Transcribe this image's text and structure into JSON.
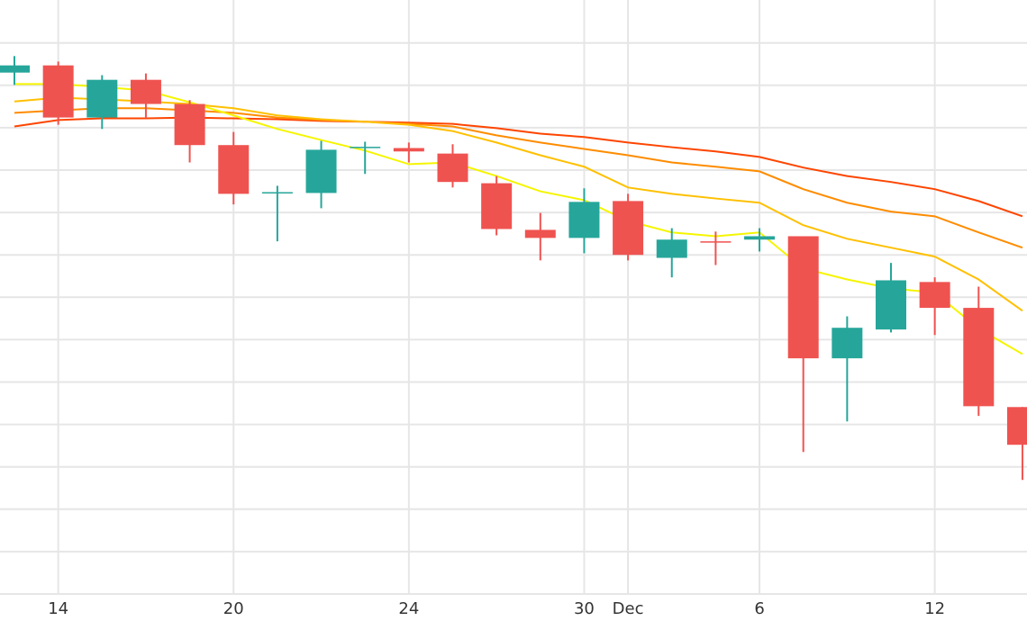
{
  "chart_data": {
    "type": "candlestick",
    "categories": [
      null,
      "14",
      null,
      null,
      null,
      "20",
      null,
      null,
      null,
      "24",
      null,
      null,
      null,
      "30",
      "Dec",
      null,
      null,
      "6",
      null,
      null,
      null,
      "12",
      null,
      null
    ],
    "open": [
      12.3,
      12.47,
      11.24,
      12.13,
      11.56,
      10.59,
      9.46,
      9.46,
      10.53,
      10.52,
      10.39,
      9.69,
      8.59,
      8.4,
      9.27,
      7.93,
      8.32,
      8.36,
      8.44,
      5.56,
      6.24,
      7.36,
      6.75,
      4.41
    ],
    "high": [
      12.69,
      12.56,
      12.24,
      12.28,
      11.65,
      10.9,
      9.63,
      10.69,
      10.67,
      10.65,
      10.61,
      9.86,
      8.99,
      9.57,
      9.44,
      8.63,
      8.55,
      8.63,
      8.44,
      6.55,
      7.81,
      7.47,
      7.25,
      4.41
    ],
    "low": [
      12.01,
      11.07,
      10.97,
      11.22,
      10.18,
      9.19,
      8.32,
      9.1,
      9.91,
      10.18,
      9.59,
      8.46,
      7.87,
      8.04,
      7.87,
      7.47,
      7.76,
      8.08,
      3.35,
      4.07,
      6.17,
      6.11,
      4.2,
      2.69
    ],
    "close": [
      12.47,
      11.24,
      12.13,
      11.56,
      10.59,
      9.44,
      9.48,
      10.48,
      10.55,
      10.44,
      9.72,
      8.61,
      8.4,
      9.25,
      8.0,
      8.36,
      8.3,
      8.44,
      5.56,
      6.28,
      7.4,
      6.75,
      4.43,
      3.52
    ],
    "up_color": "#26a69a",
    "down_color": "#ef5350",
    "series": [
      {
        "color": "#ff4500",
        "values": [
          11.03,
          11.18,
          11.22,
          11.22,
          11.24,
          11.22,
          11.2,
          11.16,
          11.14,
          11.12,
          11.09,
          10.99,
          10.86,
          10.78,
          10.65,
          10.54,
          10.44,
          10.31,
          10.06,
          9.86,
          9.72,
          9.55,
          9.27,
          8.91
        ]
      },
      {
        "color": "#ff8c00",
        "values": [
          11.35,
          11.41,
          11.46,
          11.46,
          11.41,
          11.35,
          11.24,
          11.18,
          11.14,
          11.09,
          11.03,
          10.82,
          10.65,
          10.5,
          10.35,
          10.18,
          10.08,
          9.97,
          9.55,
          9.23,
          9.02,
          8.91,
          8.53,
          8.17
        ]
      },
      {
        "color": "#ffc000",
        "values": [
          11.62,
          11.71,
          11.67,
          11.62,
          11.56,
          11.46,
          11.29,
          11.2,
          11.14,
          11.07,
          10.92,
          10.65,
          10.35,
          10.08,
          9.59,
          9.44,
          9.33,
          9.23,
          8.7,
          8.38,
          8.17,
          7.96,
          7.42,
          6.68
        ]
      },
      {
        "color": "#f5f500",
        "values": [
          12.03,
          12.03,
          11.96,
          11.88,
          11.6,
          11.29,
          10.97,
          10.71,
          10.46,
          10.14,
          10.18,
          9.86,
          9.5,
          9.29,
          8.8,
          8.53,
          8.44,
          8.53,
          7.68,
          7.42,
          7.21,
          7.11,
          6.26,
          5.66
        ]
      }
    ],
    "ylim": [
      0,
      14
    ],
    "yticks": [
      0,
      1,
      2,
      3,
      4,
      5,
      6,
      7,
      8,
      9,
      10,
      11,
      12,
      13
    ],
    "grid": true
  }
}
